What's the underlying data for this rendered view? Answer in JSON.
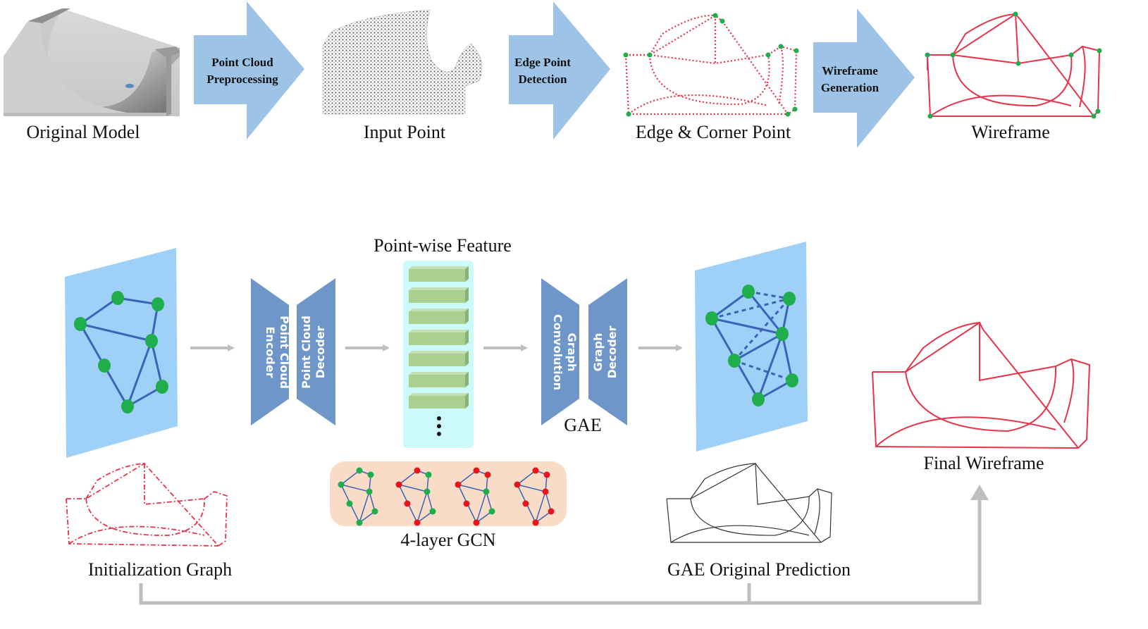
{
  "top_row": {
    "stages": [
      {
        "id": "original",
        "caption": "Original Model"
      },
      {
        "id": "input",
        "caption": "Input Point"
      },
      {
        "id": "edge",
        "caption": "Edge & Corner Point"
      },
      {
        "id": "wire",
        "caption": "Wireframe"
      }
    ],
    "arrows": [
      {
        "line1": "Point Cloud",
        "line2": "Preprocessing"
      },
      {
        "line1": "Edge Point",
        "line2": "Detection"
      },
      {
        "line1": "Wireframe",
        "line2": "Generation"
      }
    ]
  },
  "bottom_row": {
    "point_wise_feature": "Point-wise Feature",
    "encoder": {
      "line1": "Point Cloud",
      "line2": "Encoder"
    },
    "decoder": {
      "line1": "Point Cloud",
      "line2": "Decoder"
    },
    "graph_conv": {
      "line1": "Graph",
      "line2": "Convolution"
    },
    "graph_decoder": {
      "line1": "Graph",
      "line2": "Decoder"
    },
    "gae": "GAE",
    "gcn": "4-layer GCN",
    "init_graph": "Initialization Graph",
    "gae_prediction": "GAE Original Prediction",
    "final": "Final Wireframe"
  },
  "colors": {
    "arrow_fill": "#9dc3e6",
    "trapezoid_fill": "#6f96c8",
    "graph_panel": "#9fd1f8",
    "node_green": "#1fae4b",
    "node_red": "#e8141c",
    "edge_blue": "#3b63b6",
    "feature_bar": "#a9d08e",
    "feature_panel": "#ccfafa",
    "gcn_panel": "#f9dcc7",
    "wire_red": "#e8334a",
    "connector_gray": "#bfbfbf"
  }
}
